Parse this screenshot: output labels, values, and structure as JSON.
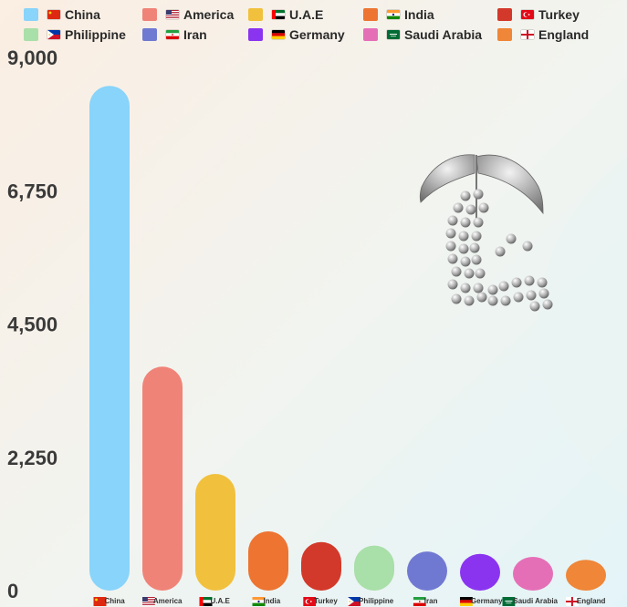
{
  "chart_data": {
    "type": "bar",
    "title": "",
    "xlabel": "",
    "ylabel": "",
    "ylim": [
      0,
      9000
    ],
    "yticks": [
      "9,000",
      "6,750",
      "4,500",
      "2,250",
      "0"
    ],
    "ytick_values": [
      9000,
      6750,
      4500,
      2250,
      0
    ],
    "grid": false,
    "legend_position": "top",
    "categories": [
      "China",
      "America",
      "U.A.E",
      "India",
      "Turkey",
      "Philippine",
      "Iran",
      "Germany",
      "Saudi Arabia",
      "England"
    ],
    "values": [
      8520,
      3780,
      1970,
      1000,
      820,
      760,
      660,
      620,
      570,
      520
    ],
    "colors": [
      "#88d4fb",
      "#f08378",
      "#f1c13d",
      "#ed7431",
      "#d2392a",
      "#a9dfa8",
      "#7079d2",
      "#8a34f0",
      "#e56fb7",
      "#ef8638"
    ],
    "flag_icons": [
      "china-flag-icon",
      "usa-flag-icon",
      "uae-flag-icon",
      "india-flag-icon",
      "turkey-flag-icon",
      "philippines-flag-icon",
      "iran-flag-icon",
      "germany-flag-icon",
      "saudi-arabia-flag-icon",
      "england-flag-icon"
    ]
  }
}
